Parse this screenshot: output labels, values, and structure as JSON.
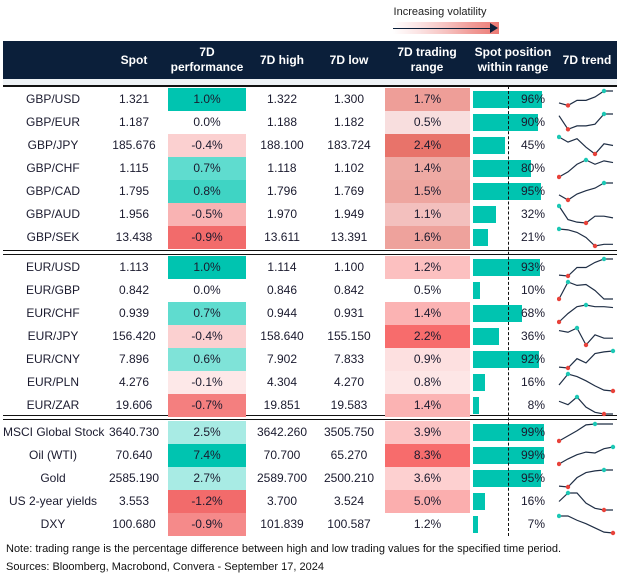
{
  "legend": {
    "label": "Increasing volatility"
  },
  "columns": [
    "",
    "Spot",
    "7D performance",
    "7D high",
    "7D low",
    "7D trading range",
    "Spot position within range",
    "7D trend"
  ],
  "colors": {
    "header": "#0b1f3a",
    "bar": "#00c4b0",
    "max_dot": "#1cc8b5",
    "min_dot": "#e8423a"
  },
  "groups": [
    [
      {
        "name": "GBP/USD",
        "spot": "1.321",
        "perf": "1.0%",
        "perf_color": "#00c4b0",
        "high": "1.322",
        "low": "1.300",
        "range": "1.7%",
        "range_color": "#ee9e98",
        "pos": 96,
        "pos_label": "96%",
        "trend": [
          0.3,
          0.15,
          0.45,
          0.45,
          0.65,
          1,
          1
        ]
      },
      {
        "name": "GBP/EUR",
        "spot": "1.187",
        "perf": "0.0%",
        "perf_color": "",
        "high": "1.188",
        "low": "1.182",
        "range": "0.5%",
        "range_color": "#f8dede",
        "pos": 90,
        "pos_label": "90%",
        "trend": [
          0.9,
          0.1,
          0.3,
          0.3,
          0.4,
          1,
          1
        ]
      },
      {
        "name": "GBP/JPY",
        "spot": "185.676",
        "perf": "-0.4%",
        "perf_color": "#fbd0d0",
        "high": "188.100",
        "low": "183.724",
        "range": "2.4%",
        "range_color": "#e8736a",
        "pos": 45,
        "pos_label": "45%",
        "trend": [
          1,
          0.7,
          0.9,
          0.4,
          0,
          0.6,
          0.5
        ]
      },
      {
        "name": "GBP/CHF",
        "spot": "1.115",
        "perf": "0.7%",
        "perf_color": "#5fdccf",
        "high": "1.118",
        "low": "1.102",
        "range": "1.4%",
        "range_color": "#eeaaa4",
        "pos": 80,
        "pos_label": "80%",
        "trend": [
          0,
          0.3,
          0.75,
          1,
          0.75,
          0.95,
          0.85
        ]
      },
      {
        "name": "GBP/CAD",
        "spot": "1.795",
        "perf": "0.8%",
        "perf_color": "#3fd4c4",
        "high": "1.796",
        "low": "1.769",
        "range": "1.5%",
        "range_color": "#eea6a0",
        "pos": 95,
        "pos_label": "95%",
        "trend": [
          0.3,
          0,
          0.35,
          0.55,
          0.7,
          1,
          1
        ]
      },
      {
        "name": "GBP/AUD",
        "spot": "1.956",
        "perf": "-0.5%",
        "perf_color": "#f9b3b3",
        "high": "1.970",
        "low": "1.949",
        "range": "1.1%",
        "range_color": "#f3c0be",
        "pos": 32,
        "pos_label": "32%",
        "trend": [
          1,
          0.2,
          0.05,
          0,
          0.4,
          0.4,
          0.3
        ]
      },
      {
        "name": "GBP/SEK",
        "spot": "13.438",
        "perf": "-0.9%",
        "perf_color": "#f26b6b",
        "high": "13.611",
        "low": "13.391",
        "range": "1.6%",
        "range_color": "#eea29c",
        "pos": 21,
        "pos_label": "21%",
        "trend": [
          1,
          0.95,
          0.8,
          0.5,
          0,
          0.1,
          0.1
        ]
      }
    ],
    [
      {
        "name": "EUR/USD",
        "spot": "1.113",
        "perf": "1.0%",
        "perf_color": "#00c4b0",
        "high": "1.114",
        "low": "1.100",
        "range": "1.2%",
        "range_color": "#fcc0c0",
        "pos": 93,
        "pos_label": "93%",
        "trend": [
          0.05,
          0,
          0.5,
          0.5,
          0.8,
          1,
          1
        ]
      },
      {
        "name": "EUR/GBP",
        "spot": "0.842",
        "perf": "0.0%",
        "perf_color": "",
        "high": "0.846",
        "low": "0.842",
        "range": "0.5%",
        "range_color": "",
        "pos": 10,
        "pos_label": "10%",
        "trend": [
          0,
          1,
          0.8,
          0.85,
          0.5,
          0,
          0
        ]
      },
      {
        "name": "EUR/CHF",
        "spot": "0.939",
        "perf": "0.7%",
        "perf_color": "#5fdccf",
        "high": "0.944",
        "low": "0.931",
        "range": "1.4%",
        "range_color": "#fbb3b3",
        "pos": 68,
        "pos_label": "68%",
        "trend": [
          0,
          0.5,
          0.9,
          1,
          0.9,
          0.9,
          0.85
        ]
      },
      {
        "name": "EUR/JPY",
        "spot": "156.420",
        "perf": "-0.4%",
        "perf_color": "#fbd0d0",
        "high": "158.640",
        "low": "155.150",
        "range": "2.2%",
        "range_color": "#f76c6c",
        "pos": 36,
        "pos_label": "36%",
        "trend": [
          0.85,
          0.75,
          1,
          0,
          0.6,
          0.4,
          0.4
        ]
      },
      {
        "name": "EUR/CNY",
        "spot": "7.896",
        "perf": "0.6%",
        "perf_color": "#7fe3d8",
        "high": "7.902",
        "low": "7.833",
        "range": "0.9%",
        "range_color": "#fde0e0",
        "pos": 92,
        "pos_label": "92%",
        "trend": [
          0.05,
          0,
          0.55,
          0.3,
          0.85,
          0.95,
          1
        ]
      },
      {
        "name": "EUR/PLN",
        "spot": "4.276",
        "perf": "-0.1%",
        "perf_color": "#fde8e8",
        "high": "4.304",
        "low": "4.270",
        "range": "0.8%",
        "range_color": "#fde6e6",
        "pos": 16,
        "pos_label": "16%",
        "trend": [
          0.35,
          1,
          0.85,
          0.6,
          0.3,
          0.05,
          0
        ]
      },
      {
        "name": "EUR/ZAR",
        "spot": "19.606",
        "perf": "-0.7%",
        "perf_color": "#f47f7f",
        "high": "19.851",
        "low": "19.583",
        "range": "1.4%",
        "range_color": "#fbb3b3",
        "pos": 8,
        "pos_label": "8%",
        "trend": [
          0.75,
          0.55,
          1,
          0.4,
          0.1,
          0,
          0
        ]
      }
    ],
    [
      {
        "name": "MSCI Global Stock",
        "spot": "3640.730",
        "perf": "2.5%",
        "perf_color": "#a8ebe4",
        "high": "3642.260",
        "low": "3505.750",
        "range": "3.9%",
        "range_color": "#fcc4c4",
        "pos": 99,
        "pos_label": "99%",
        "trend": [
          0,
          0.3,
          0.6,
          0.95,
          1,
          1,
          1
        ]
      },
      {
        "name": "Oil (WTI)",
        "spot": "70.640",
        "perf": "7.4%",
        "perf_color": "#00c4b0",
        "high": "70.700",
        "low": "65.270",
        "range": "8.3%",
        "range_color": "#f76c6c",
        "pos": 99,
        "pos_label": "99%",
        "trend": [
          0,
          0.3,
          0.55,
          0.7,
          0.65,
          0.9,
          1
        ]
      },
      {
        "name": "Gold",
        "spot": "2585.190",
        "perf": "2.7%",
        "perf_color": "#a8ebe4",
        "high": "2589.700",
        "low": "2500.210",
        "range": "3.6%",
        "range_color": "#fdd0d0",
        "pos": 95,
        "pos_label": "95%",
        "trend": [
          0.05,
          0,
          0.55,
          0.85,
          0.95,
          1,
          1
        ]
      },
      {
        "name": "US 2-year yields",
        "spot": "3.553",
        "perf": "-1.2%",
        "perf_color": "#f26b6b",
        "high": "3.700",
        "low": "3.524",
        "range": "5.0%",
        "range_color": "#fbaeae",
        "pos": 16,
        "pos_label": "16%",
        "trend": [
          0.5,
          1,
          1,
          0.4,
          0.1,
          0,
          0
        ]
      },
      {
        "name": "DXY",
        "spot": "100.680",
        "perf": "-0.9%",
        "perf_color": "#f58a8a",
        "high": "101.839",
        "low": "100.587",
        "range": "1.2%",
        "range_color": "",
        "pos": 7,
        "pos_label": "7%",
        "trend": [
          1,
          1,
          0.75,
          0.55,
          0.3,
          0.05,
          0
        ]
      }
    ]
  ],
  "footer": {
    "note": "Note: trading range is the percentage difference between high and low trading values for the specified time period.",
    "sources": "Sources: Bloomberg, Macrobond, Convera - September 17, 2024"
  }
}
